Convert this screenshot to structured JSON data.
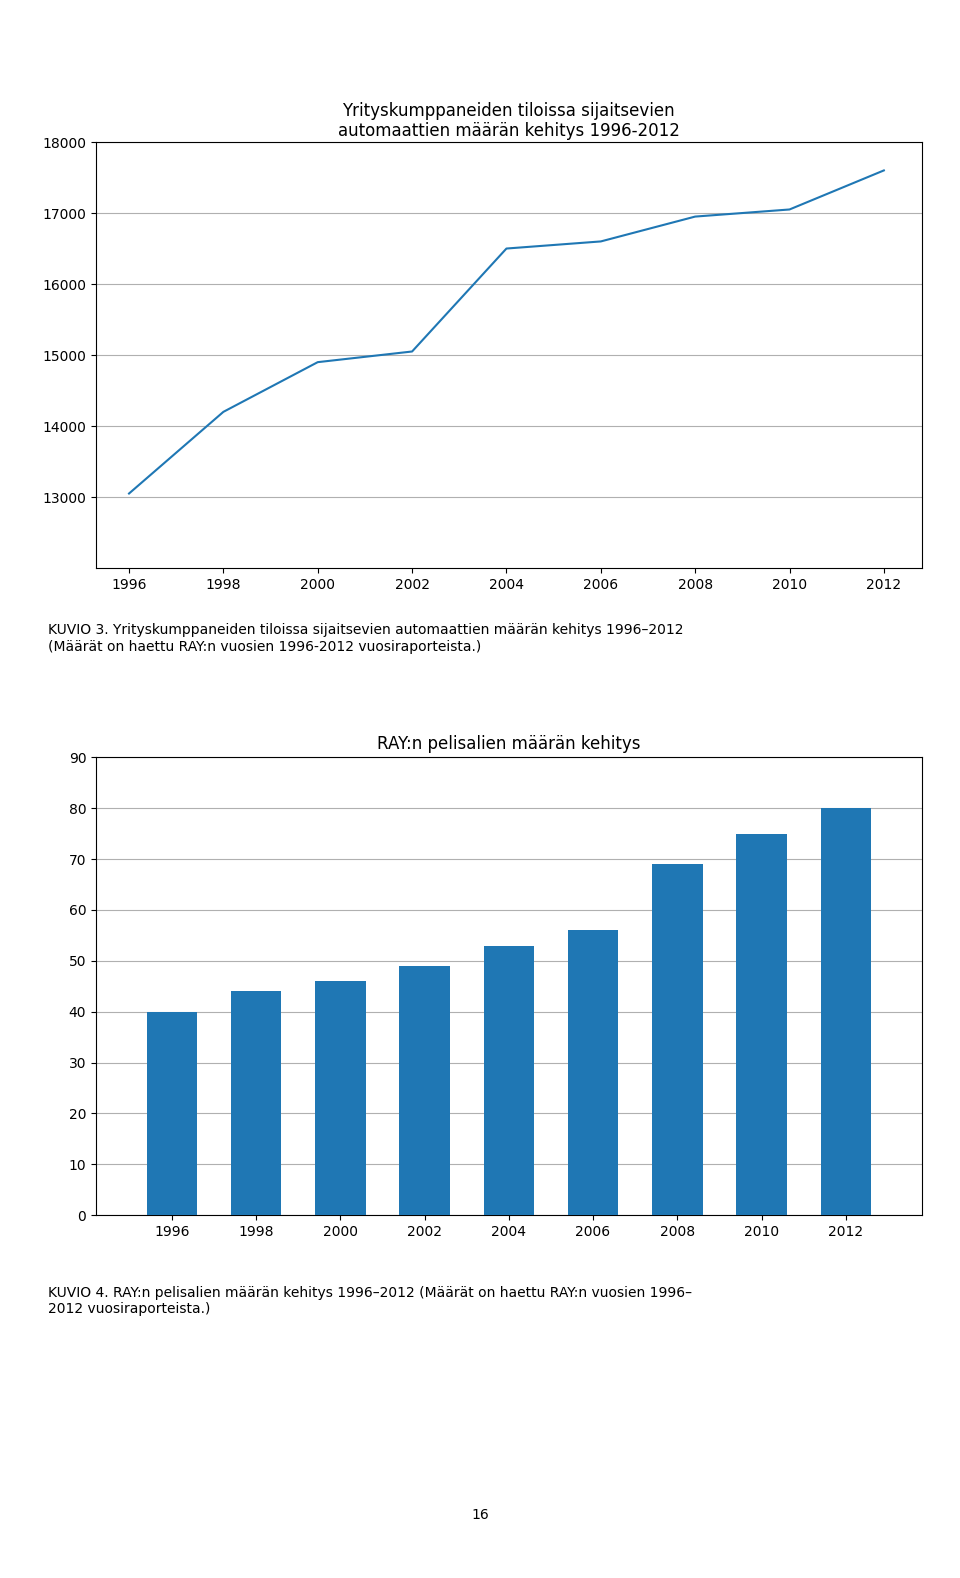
{
  "chart_data": [
    {
      "type": "line",
      "title": "Yrityskumppaneiden tiloissa sijaitsevien\nautomaattien määrän kehitys 1996-2012",
      "x": [
        1996,
        1998,
        2000,
        2002,
        2004,
        2006,
        2008,
        2010,
        2012
      ],
      "values": [
        13050,
        14200,
        14900,
        15050,
        16500,
        16600,
        16950,
        17050,
        17600
      ],
      "xlim": [
        1995.3,
        2012.8
      ],
      "xticks": [
        1996,
        1998,
        2000,
        2002,
        2004,
        2006,
        2008,
        2010,
        2012
      ],
      "ylim": [
        12000,
        18000
      ],
      "yticks": [
        13000,
        14000,
        15000,
        16000,
        17000,
        18000
      ],
      "grid": "y",
      "caption": "KUVIO 3. Yrityskumppaneiden tiloissa sijaitsevien automaattien määrän kehitys 1996–2012\n(Määrät on haettu RAY:n vuosien 1996-2012 vuosiraporteista.)"
    },
    {
      "type": "bar",
      "title": "RAY:n pelisalien määrän kehitys",
      "x": [
        1996,
        1998,
        2000,
        2002,
        2004,
        2006,
        2008,
        2010,
        2012
      ],
      "values": [
        40,
        44,
        46,
        49,
        53,
        56,
        69,
        75,
        80
      ],
      "xlim": [
        1994.2,
        2013.8
      ],
      "xticks": [
        1996,
        1998,
        2000,
        2002,
        2004,
        2006,
        2008,
        2010,
        2012
      ],
      "ylim": [
        0,
        90
      ],
      "yticks": [
        0,
        10,
        20,
        30,
        40,
        50,
        60,
        70,
        80,
        90
      ],
      "grid": "y",
      "caption": "KUVIO 4. RAY:n pelisalien määrän kehitys 1996–2012 (Määrät on haettu RAY:n vuosien 1996–\n2012 vuosiraporteista.)"
    }
  ],
  "page_number": "16"
}
